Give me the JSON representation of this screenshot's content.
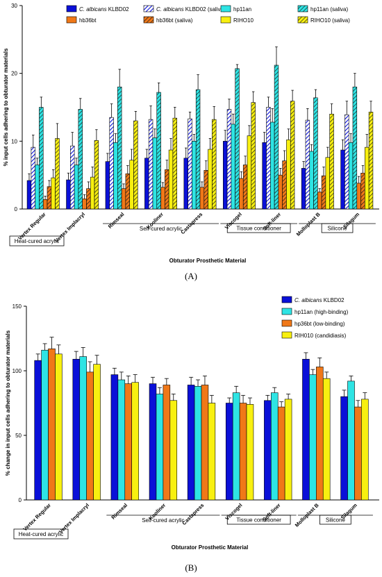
{
  "colors": {
    "KLBD02": "#0a10d8",
    "hp11an": "#2ee4e4",
    "hb36bt": "#f07818",
    "RIHO10": "#f8f010",
    "saliva_hatch": "#1a1a1a",
    "KLBD02_saliva_bg": "#ffffff",
    "frame": "#000000"
  },
  "chart_data": [
    {
      "type": "bar",
      "panel_label": "(A)",
      "ylabel": "% input cells adhering to obturator materials",
      "xlabel": "Obturator Prosthetic Material",
      "ylim": [
        0,
        30
      ],
      "yticks": [
        "0",
        "10",
        "20",
        "30"
      ],
      "legend_position": "top",
      "categories": [
        "Vertex Regular",
        "Vertex Implacryl",
        "Rimseal",
        "Kooliner",
        "Castapress",
        "Viscogel",
        "Soft-liner",
        "Molloplast B",
        "Silagum"
      ],
      "groups": [
        {
          "label": "Heat-cured acrylic",
          "boxed": true,
          "from": 0,
          "to": 1
        },
        {
          "label": "Self-cured acrylic",
          "boxed": false,
          "from": 2,
          "to": 4
        },
        {
          "label": "Tissue conditioner",
          "boxed": true,
          "from": 5,
          "to": 6
        },
        {
          "label": "Silicone",
          "boxed": true,
          "from": 7,
          "to": 8
        }
      ],
      "series": [
        {
          "name_italic": "C. albicans",
          "name_rest": " KLBD02",
          "color": "KLBD02",
          "hatched": false,
          "values": [
            4.2,
            4.3,
            7.0,
            7.5,
            7.5,
            10.0,
            9.8,
            6.0,
            8.7
          ],
          "errors": [
            1.0,
            1.0,
            1.2,
            1.3,
            1.5,
            1.6,
            1.5,
            1.0,
            1.5
          ]
        },
        {
          "name_italic": "C. albicans",
          "name_rest": " KLBD02 (saliva)",
          "color": "KLBD02",
          "hatched": true,
          "values": [
            9.1,
            9.3,
            13.5,
            13.2,
            13.3,
            14.7,
            15.0,
            13.1,
            13.9
          ],
          "errors": [
            1.8,
            2.0,
            2.0,
            2.0,
            1.0,
            1.5,
            1.5,
            1.7,
            2.0
          ]
        },
        {
          "name_italic": "",
          "name_rest": "hp11an",
          "color": "hp11an",
          "hatched": false,
          "values": [
            6.5,
            6.5,
            9.8,
            10.5,
            10.0,
            12.5,
            12.8,
            8.5,
            9.8
          ],
          "errors": [
            1.0,
            1.0,
            1.3,
            1.3,
            1.0,
            1.5,
            2.0,
            1.0,
            1.3
          ]
        },
        {
          "name_italic": "",
          "name_rest": "hp11an (saliva)",
          "color": "hp11an",
          "hatched": true,
          "values": [
            15.0,
            14.7,
            18.0,
            17.2,
            17.6,
            20.7,
            21.2,
            16.4,
            18.0
          ],
          "errors": [
            1.5,
            1.6,
            2.6,
            1.4,
            2.2,
            0.6,
            2.7,
            1.2,
            2.0
          ]
        },
        {
          "name_italic": "",
          "name_rest": "hb36bt",
          "color": "hb36bt",
          "hatched": false,
          "values": [
            1.4,
            1.5,
            3.0,
            3.2,
            3.2,
            4.5,
            5.0,
            2.5,
            3.8
          ],
          "errors": [
            0.5,
            0.6,
            0.7,
            0.7,
            0.8,
            1.0,
            1.0,
            0.5,
            1.0
          ]
        },
        {
          "name_italic": "",
          "name_rest": "hb36bt (saliva)",
          "color": "hb36bt",
          "hatched": true,
          "values": [
            3.3,
            3.0,
            5.2,
            5.8,
            5.7,
            6.5,
            7.1,
            4.9,
            5.3
          ],
          "errors": [
            0.9,
            1.0,
            1.2,
            1.4,
            1.4,
            1.3,
            1.5,
            1.3,
            1.1
          ]
        },
        {
          "name_italic": "",
          "name_rest": "RIHO10",
          "color": "RIHO10",
          "hatched": false,
          "values": [
            4.6,
            4.7,
            7.2,
            8.7,
            8.8,
            10.8,
            10.2,
            7.6,
            9.1
          ],
          "errors": [
            1.2,
            1.5,
            1.6,
            1.7,
            1.6,
            1.5,
            1.6,
            1.5,
            1.9
          ]
        },
        {
          "name_italic": "",
          "name_rest": "RIHO10  (saliva)",
          "color": "RIHO10",
          "hatched": true,
          "values": [
            10.4,
            10.1,
            13.0,
            13.4,
            13.2,
            15.7,
            15.9,
            14.0,
            14.3
          ],
          "errors": [
            2.2,
            1.6,
            1.4,
            1.6,
            1.9,
            1.6,
            1.6,
            1.5,
            1.6
          ]
        }
      ]
    },
    {
      "type": "bar",
      "panel_label": "(B)",
      "ylabel": "% change in input cells adhering to obturator materials",
      "xlabel": "Obturator Prosthetic Material",
      "ylim": [
        0,
        150
      ],
      "yticks": [
        "0",
        "50",
        "100",
        "150"
      ],
      "legend_position": "top-right",
      "categories": [
        "Vertex Regular",
        "Vertex Implacryl",
        "Rimseal",
        "Kooliner",
        "Castapress",
        "Viscogel",
        "Soft-liner",
        "Molloplast B",
        "Silagum"
      ],
      "groups": [
        {
          "label": "Heat-cured acrylic",
          "boxed": true,
          "from": 0,
          "to": 1
        },
        {
          "label": "Self-cured acrylic",
          "boxed": false,
          "from": 2,
          "to": 4
        },
        {
          "label": "Tissue conditioner",
          "boxed": true,
          "from": 5,
          "to": 6
        },
        {
          "label": "Silicone",
          "boxed": true,
          "from": 7,
          "to": 8
        }
      ],
      "series": [
        {
          "name_italic": "C. albicans",
          "name_rest": " KLBD02",
          "color": "KLBD02",
          "hatched": false,
          "values": [
            108,
            109,
            97,
            90,
            89,
            75,
            77,
            109,
            80
          ],
          "errors": [
            5,
            6,
            5,
            5,
            6,
            4,
            4,
            5,
            5
          ]
        },
        {
          "name_italic": "",
          "name_rest": "hp11an (high-binding)",
          "color": "hp11an",
          "hatched": false,
          "values": [
            116,
            111,
            93,
            82,
            88,
            83,
            83,
            97,
            92
          ],
          "errors": [
            5,
            7,
            6,
            5,
            5,
            5,
            4,
            4,
            4
          ]
        },
        {
          "name_italic": "",
          "name_rest": "hp36bt (low-binding)",
          "color": "hb36bt",
          "hatched": false,
          "values": [
            117,
            99,
            90,
            89,
            89,
            75,
            72,
            103,
            72
          ],
          "errors": [
            9,
            8,
            6,
            5,
            7,
            6,
            4,
            7,
            5
          ]
        },
        {
          "name_italic": "",
          "name_rest": "RIH010 (candidiasis)",
          "color": "RIHO10",
          "hatched": false,
          "values": [
            113,
            105,
            91,
            77,
            75,
            74,
            78,
            94,
            78
          ],
          "errors": [
            7,
            7,
            6,
            5,
            6,
            5,
            4,
            5,
            5
          ]
        }
      ]
    }
  ]
}
